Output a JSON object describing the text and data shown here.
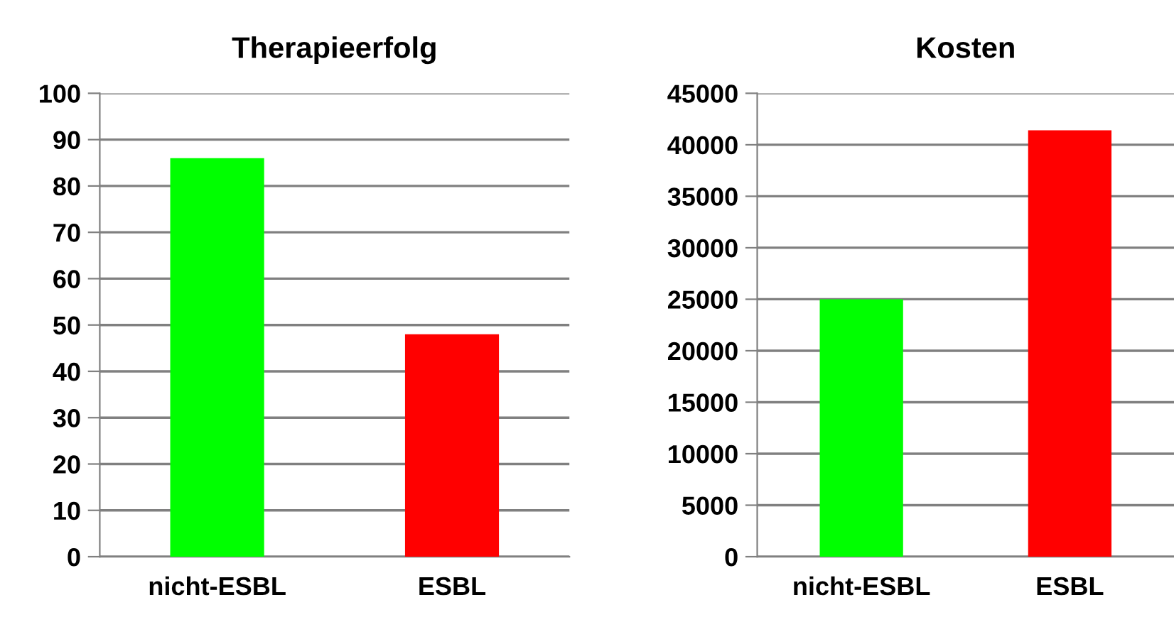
{
  "chart_data": [
    {
      "type": "bar",
      "title": "Therapieerfolg",
      "categories": [
        "nicht-ESBL",
        "ESBL"
      ],
      "values": [
        86,
        48
      ],
      "colors": [
        "#00ff00",
        "#ff0000"
      ],
      "ylim": [
        0,
        100
      ],
      "yticks": [
        0,
        10,
        20,
        30,
        40,
        50,
        60,
        70,
        80,
        90,
        100
      ],
      "grid": "y"
    },
    {
      "type": "bar",
      "title": "Kosten",
      "categories": [
        "nicht-ESBL",
        "ESBL"
      ],
      "values": [
        25000,
        41400
      ],
      "colors": [
        "#00ff00",
        "#ff0000"
      ],
      "ylim": [
        0,
        45000
      ],
      "yticks": [
        0,
        5000,
        10000,
        15000,
        20000,
        25000,
        30000,
        35000,
        40000,
        45000
      ],
      "grid": "y"
    }
  ]
}
